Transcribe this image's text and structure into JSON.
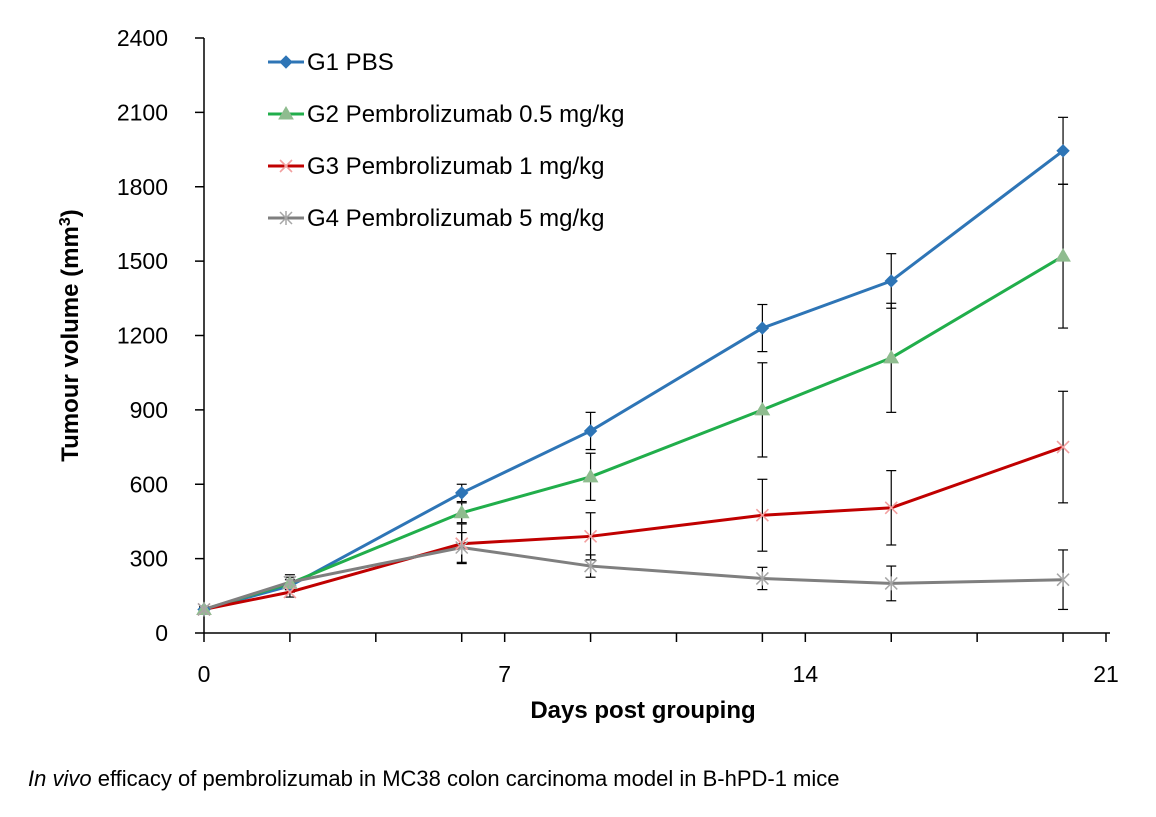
{
  "chart_data": {
    "type": "line",
    "title": "",
    "xlabel": "Days post grouping",
    "ylabel_main": "Tumour volume (mm",
    "ylabel_sup": "3",
    "ylabel_close": ")",
    "xlim": [
      0,
      21
    ],
    "ylim": [
      0,
      2400
    ],
    "xticks": [
      0,
      7,
      14,
      21
    ],
    "xticks_minor": [
      2,
      4,
      6,
      9,
      11,
      13,
      16,
      18,
      20
    ],
    "yticks": [
      0,
      300,
      600,
      900,
      1200,
      1500,
      1800,
      2100,
      2400
    ],
    "legend_position": "top-left",
    "grid": false,
    "x": [
      0,
      2,
      6,
      9,
      13,
      16,
      20
    ],
    "series": [
      {
        "name": "G1 PBS",
        "color": "#2E75B6",
        "marker": "diamond",
        "values": [
          95,
          190,
          565,
          815,
          1230,
          1420,
          1945
        ],
        "errors": [
          10,
          25,
          35,
          75,
          95,
          110,
          135
        ]
      },
      {
        "name": "G2 Pembrolizumab 0.5 mg/kg",
        "color": "#21AE4B",
        "marker": "triangle",
        "values": [
          95,
          200,
          485,
          630,
          900,
          1110,
          1520
        ],
        "errors": [
          10,
          25,
          40,
          95,
          190,
          220,
          290
        ]
      },
      {
        "name": "G3 Pembrolizumab 1 mg/kg",
        "color": "#C00000",
        "marker": "x",
        "values": [
          95,
          165,
          360,
          390,
          475,
          505,
          750
        ],
        "errors": [
          10,
          20,
          80,
          95,
          145,
          150,
          225
        ]
      },
      {
        "name": "G4 Pembrolizumab 5 mg/kg",
        "color": "#7F7F7F",
        "marker": "star",
        "values": [
          95,
          205,
          345,
          270,
          220,
          200,
          215
        ],
        "errors": [
          10,
          30,
          60,
          45,
          45,
          70,
          120
        ]
      }
    ]
  },
  "caption": {
    "italic": "In vivo",
    "rest": " efficacy of pembrolizumab in MC38 colon carcinoma model in B-hPD-1 mice"
  }
}
